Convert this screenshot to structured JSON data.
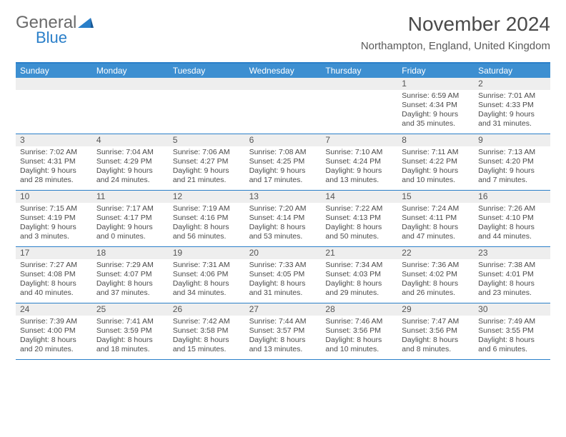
{
  "brand": {
    "part1": "General",
    "part2": "Blue"
  },
  "title": "November 2024",
  "location": "Northampton, England, United Kingdom",
  "colors": {
    "header_bg": "#3d8fd1",
    "border": "#2a7fc9",
    "daynum_bg": "#eeeeee",
    "text": "#4a4a4a"
  },
  "day_names": [
    "Sunday",
    "Monday",
    "Tuesday",
    "Wednesday",
    "Thursday",
    "Friday",
    "Saturday"
  ],
  "weeks": [
    [
      null,
      null,
      null,
      null,
      null,
      {
        "n": "1",
        "sr": "Sunrise: 6:59 AM",
        "ss": "Sunset: 4:34 PM",
        "d1": "Daylight: 9 hours",
        "d2": "and 35 minutes."
      },
      {
        "n": "2",
        "sr": "Sunrise: 7:01 AM",
        "ss": "Sunset: 4:33 PM",
        "d1": "Daylight: 9 hours",
        "d2": "and 31 minutes."
      }
    ],
    [
      {
        "n": "3",
        "sr": "Sunrise: 7:02 AM",
        "ss": "Sunset: 4:31 PM",
        "d1": "Daylight: 9 hours",
        "d2": "and 28 minutes."
      },
      {
        "n": "4",
        "sr": "Sunrise: 7:04 AM",
        "ss": "Sunset: 4:29 PM",
        "d1": "Daylight: 9 hours",
        "d2": "and 24 minutes."
      },
      {
        "n": "5",
        "sr": "Sunrise: 7:06 AM",
        "ss": "Sunset: 4:27 PM",
        "d1": "Daylight: 9 hours",
        "d2": "and 21 minutes."
      },
      {
        "n": "6",
        "sr": "Sunrise: 7:08 AM",
        "ss": "Sunset: 4:25 PM",
        "d1": "Daylight: 9 hours",
        "d2": "and 17 minutes."
      },
      {
        "n": "7",
        "sr": "Sunrise: 7:10 AM",
        "ss": "Sunset: 4:24 PM",
        "d1": "Daylight: 9 hours",
        "d2": "and 13 minutes."
      },
      {
        "n": "8",
        "sr": "Sunrise: 7:11 AM",
        "ss": "Sunset: 4:22 PM",
        "d1": "Daylight: 9 hours",
        "d2": "and 10 minutes."
      },
      {
        "n": "9",
        "sr": "Sunrise: 7:13 AM",
        "ss": "Sunset: 4:20 PM",
        "d1": "Daylight: 9 hours",
        "d2": "and 7 minutes."
      }
    ],
    [
      {
        "n": "10",
        "sr": "Sunrise: 7:15 AM",
        "ss": "Sunset: 4:19 PM",
        "d1": "Daylight: 9 hours",
        "d2": "and 3 minutes."
      },
      {
        "n": "11",
        "sr": "Sunrise: 7:17 AM",
        "ss": "Sunset: 4:17 PM",
        "d1": "Daylight: 9 hours",
        "d2": "and 0 minutes."
      },
      {
        "n": "12",
        "sr": "Sunrise: 7:19 AM",
        "ss": "Sunset: 4:16 PM",
        "d1": "Daylight: 8 hours",
        "d2": "and 56 minutes."
      },
      {
        "n": "13",
        "sr": "Sunrise: 7:20 AM",
        "ss": "Sunset: 4:14 PM",
        "d1": "Daylight: 8 hours",
        "d2": "and 53 minutes."
      },
      {
        "n": "14",
        "sr": "Sunrise: 7:22 AM",
        "ss": "Sunset: 4:13 PM",
        "d1": "Daylight: 8 hours",
        "d2": "and 50 minutes."
      },
      {
        "n": "15",
        "sr": "Sunrise: 7:24 AM",
        "ss": "Sunset: 4:11 PM",
        "d1": "Daylight: 8 hours",
        "d2": "and 47 minutes."
      },
      {
        "n": "16",
        "sr": "Sunrise: 7:26 AM",
        "ss": "Sunset: 4:10 PM",
        "d1": "Daylight: 8 hours",
        "d2": "and 44 minutes."
      }
    ],
    [
      {
        "n": "17",
        "sr": "Sunrise: 7:27 AM",
        "ss": "Sunset: 4:08 PM",
        "d1": "Daylight: 8 hours",
        "d2": "and 40 minutes."
      },
      {
        "n": "18",
        "sr": "Sunrise: 7:29 AM",
        "ss": "Sunset: 4:07 PM",
        "d1": "Daylight: 8 hours",
        "d2": "and 37 minutes."
      },
      {
        "n": "19",
        "sr": "Sunrise: 7:31 AM",
        "ss": "Sunset: 4:06 PM",
        "d1": "Daylight: 8 hours",
        "d2": "and 34 minutes."
      },
      {
        "n": "20",
        "sr": "Sunrise: 7:33 AM",
        "ss": "Sunset: 4:05 PM",
        "d1": "Daylight: 8 hours",
        "d2": "and 31 minutes."
      },
      {
        "n": "21",
        "sr": "Sunrise: 7:34 AM",
        "ss": "Sunset: 4:03 PM",
        "d1": "Daylight: 8 hours",
        "d2": "and 29 minutes."
      },
      {
        "n": "22",
        "sr": "Sunrise: 7:36 AM",
        "ss": "Sunset: 4:02 PM",
        "d1": "Daylight: 8 hours",
        "d2": "and 26 minutes."
      },
      {
        "n": "23",
        "sr": "Sunrise: 7:38 AM",
        "ss": "Sunset: 4:01 PM",
        "d1": "Daylight: 8 hours",
        "d2": "and 23 minutes."
      }
    ],
    [
      {
        "n": "24",
        "sr": "Sunrise: 7:39 AM",
        "ss": "Sunset: 4:00 PM",
        "d1": "Daylight: 8 hours",
        "d2": "and 20 minutes."
      },
      {
        "n": "25",
        "sr": "Sunrise: 7:41 AM",
        "ss": "Sunset: 3:59 PM",
        "d1": "Daylight: 8 hours",
        "d2": "and 18 minutes."
      },
      {
        "n": "26",
        "sr": "Sunrise: 7:42 AM",
        "ss": "Sunset: 3:58 PM",
        "d1": "Daylight: 8 hours",
        "d2": "and 15 minutes."
      },
      {
        "n": "27",
        "sr": "Sunrise: 7:44 AM",
        "ss": "Sunset: 3:57 PM",
        "d1": "Daylight: 8 hours",
        "d2": "and 13 minutes."
      },
      {
        "n": "28",
        "sr": "Sunrise: 7:46 AM",
        "ss": "Sunset: 3:56 PM",
        "d1": "Daylight: 8 hours",
        "d2": "and 10 minutes."
      },
      {
        "n": "29",
        "sr": "Sunrise: 7:47 AM",
        "ss": "Sunset: 3:56 PM",
        "d1": "Daylight: 8 hours",
        "d2": "and 8 minutes."
      },
      {
        "n": "30",
        "sr": "Sunrise: 7:49 AM",
        "ss": "Sunset: 3:55 PM",
        "d1": "Daylight: 8 hours",
        "d2": "and 6 minutes."
      }
    ]
  ]
}
